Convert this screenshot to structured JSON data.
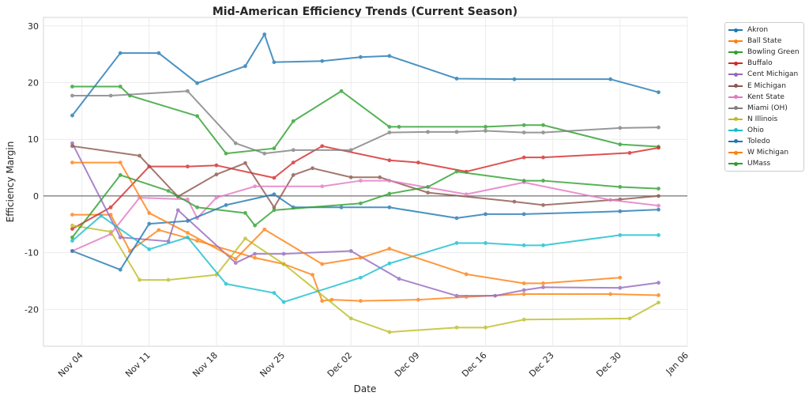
{
  "chart_data": {
    "type": "line",
    "title": "Mid-American Efficiency Trends (Current Season)",
    "xlabel": "Date",
    "ylabel": "Efficiency Margin",
    "ylim": [
      -26.5,
      31.5
    ],
    "xlim": [
      "11-00",
      "01-06"
    ],
    "yticks": [
      -20,
      -10,
      0,
      10,
      20,
      30
    ],
    "xticks": [
      {
        "date": "11-04",
        "label": "Nov 04"
      },
      {
        "date": "11-11",
        "label": "Nov 11"
      },
      {
        "date": "11-18",
        "label": "Nov 18"
      },
      {
        "date": "11-25",
        "label": "Nov 25"
      },
      {
        "date": "12-02",
        "label": "Dec 02"
      },
      {
        "date": "12-09",
        "label": "Dec 09"
      },
      {
        "date": "12-16",
        "label": "Dec 16"
      },
      {
        "date": "12-23",
        "label": "Dec 23"
      },
      {
        "date": "12-30",
        "label": "Dec 30"
      },
      {
        "date": "01-06",
        "label": "Jan 06"
      }
    ],
    "grid": true,
    "reference_line": 0,
    "legend_position": "outside-top-right",
    "series": [
      {
        "name": "Akron",
        "color": "#1f77b4",
        "points": [
          [
            "11-03",
            14.2
          ],
          [
            "11-08",
            25.2
          ],
          [
            "11-12",
            25.2
          ],
          [
            "11-16",
            19.9
          ],
          [
            "11-21",
            22.9
          ],
          [
            "11-23",
            28.5
          ],
          [
            "11-24",
            23.6
          ],
          [
            "11-29",
            23.8
          ],
          [
            "12-03",
            24.5
          ],
          [
            "12-06",
            24.7
          ],
          [
            "12-13",
            20.7
          ],
          [
            "12-19",
            20.6
          ],
          [
            "12-29",
            20.6
          ],
          [
            "01-03",
            18.3
          ]
        ]
      },
      {
        "name": "Ball State",
        "color": "#ff7f0e",
        "points": [
          [
            "11-03",
            -3.3
          ],
          [
            "11-07",
            -3.3
          ],
          [
            "11-09",
            -9.7
          ],
          [
            "11-12",
            -6.0
          ],
          [
            "11-16",
            -7.9
          ],
          [
            "11-22",
            -10.9
          ],
          [
            "11-25",
            -12.0
          ],
          [
            "11-28",
            -13.9
          ],
          [
            "11-29",
            -18.5
          ],
          [
            "11-30",
            -18.3
          ],
          [
            "12-03",
            -18.5
          ],
          [
            "12-09",
            -18.3
          ],
          [
            "12-14",
            -17.8
          ],
          [
            "12-20",
            -17.3
          ],
          [
            "12-29",
            -17.3
          ],
          [
            "01-03",
            -17.5
          ]
        ]
      },
      {
        "name": "Bowling Green",
        "color": "#2ca02c",
        "points": [
          [
            "11-03",
            19.3
          ],
          [
            "11-08",
            19.3
          ],
          [
            "11-09",
            17.7
          ],
          [
            "11-16",
            14.1
          ],
          [
            "11-19",
            7.5
          ],
          [
            "11-24",
            8.4
          ],
          [
            "11-26",
            13.2
          ],
          [
            "12-01",
            18.5
          ],
          [
            "12-06",
            12.2
          ],
          [
            "12-07",
            12.2
          ],
          [
            "12-16",
            12.2
          ],
          [
            "12-20",
            12.5
          ],
          [
            "12-22",
            12.5
          ],
          [
            "12-30",
            9.1
          ],
          [
            "01-03",
            8.7
          ]
        ]
      },
      {
        "name": "Buffalo",
        "color": "#d62728",
        "points": [
          [
            "11-03",
            -5.8
          ],
          [
            "11-07",
            -2.0
          ],
          [
            "11-11",
            5.2
          ],
          [
            "11-15",
            5.2
          ],
          [
            "11-18",
            5.4
          ],
          [
            "11-24",
            3.2
          ],
          [
            "11-26",
            5.9
          ],
          [
            "11-29",
            8.8
          ],
          [
            "12-06",
            6.3
          ],
          [
            "12-09",
            5.9
          ],
          [
            "12-14",
            4.3
          ],
          [
            "12-20",
            6.8
          ],
          [
            "12-22",
            6.8
          ],
          [
            "12-31",
            7.6
          ],
          [
            "01-03",
            8.5
          ]
        ]
      },
      {
        "name": "Cent Michigan",
        "color": "#9467bd",
        "points": [
          [
            "11-03",
            9.3
          ],
          [
            "11-08",
            -7.3
          ],
          [
            "11-13",
            -8.0
          ],
          [
            "11-14",
            -2.5
          ],
          [
            "11-20",
            -11.8
          ],
          [
            "11-22",
            -10.2
          ],
          [
            "11-25",
            -10.2
          ],
          [
            "12-02",
            -9.7
          ],
          [
            "12-07",
            -14.6
          ],
          [
            "12-13",
            -17.6
          ],
          [
            "12-17",
            -17.6
          ],
          [
            "12-20",
            -16.6
          ],
          [
            "12-22",
            -16.1
          ],
          [
            "12-30",
            -16.2
          ],
          [
            "01-03",
            -15.3
          ]
        ]
      },
      {
        "name": "E Michigan",
        "color": "#8c564b",
        "points": [
          [
            "11-03",
            8.8
          ],
          [
            "11-10",
            7.1
          ],
          [
            "11-14",
            -0.1
          ],
          [
            "11-18",
            3.8
          ],
          [
            "11-21",
            5.8
          ],
          [
            "11-24",
            -2.0
          ],
          [
            "11-26",
            3.7
          ],
          [
            "11-28",
            4.9
          ],
          [
            "12-02",
            3.3
          ],
          [
            "12-05",
            3.3
          ],
          [
            "12-10",
            0.6
          ],
          [
            "12-19",
            -1.0
          ],
          [
            "12-22",
            -1.6
          ],
          [
            "12-30",
            -0.6
          ],
          [
            "01-03",
            0.0
          ]
        ]
      },
      {
        "name": "Kent State",
        "color": "#e377c2",
        "points": [
          [
            "11-03",
            -9.7
          ],
          [
            "11-07",
            -6.7
          ],
          [
            "11-10",
            -0.3
          ],
          [
            "11-15",
            -0.6
          ],
          [
            "11-16",
            -3.9
          ],
          [
            "11-18",
            -0.3
          ],
          [
            "11-22",
            1.7
          ],
          [
            "11-29",
            1.7
          ],
          [
            "12-03",
            2.7
          ],
          [
            "12-06",
            2.7
          ],
          [
            "12-14",
            0.3
          ],
          [
            "12-20",
            2.4
          ],
          [
            "12-29",
            -0.7
          ],
          [
            "01-03",
            -1.7
          ]
        ]
      },
      {
        "name": "Miami (OH)",
        "color": "#7f7f7f",
        "points": [
          [
            "11-03",
            17.7
          ],
          [
            "11-07",
            17.7
          ],
          [
            "11-15",
            18.5
          ],
          [
            "11-20",
            9.3
          ],
          [
            "11-23",
            7.5
          ],
          [
            "11-26",
            8.1
          ],
          [
            "12-02",
            8.1
          ],
          [
            "12-06",
            11.2
          ],
          [
            "12-10",
            11.3
          ],
          [
            "12-13",
            11.3
          ],
          [
            "12-16",
            11.5
          ],
          [
            "12-20",
            11.2
          ],
          [
            "12-22",
            11.2
          ],
          [
            "12-30",
            12.0
          ],
          [
            "01-03",
            12.1
          ]
        ]
      },
      {
        "name": "N Illinois",
        "color": "#bcbd22",
        "points": [
          [
            "11-03",
            -5.2
          ],
          [
            "11-07",
            -6.3
          ],
          [
            "11-10",
            -14.8
          ],
          [
            "11-13",
            -14.8
          ],
          [
            "11-18",
            -13.9
          ],
          [
            "11-21",
            -7.5
          ],
          [
            "11-25",
            -12.0
          ],
          [
            "12-02",
            -21.6
          ],
          [
            "12-06",
            -24.0
          ],
          [
            "12-13",
            -23.2
          ],
          [
            "12-16",
            -23.2
          ],
          [
            "12-20",
            -21.8
          ],
          [
            "12-31",
            -21.6
          ],
          [
            "01-03",
            -18.8
          ]
        ]
      },
      {
        "name": "Ohio",
        "color": "#17becf",
        "points": [
          [
            "11-03",
            -7.9
          ],
          [
            "11-06",
            -3.5
          ],
          [
            "11-11",
            -9.4
          ],
          [
            "11-15",
            -7.3
          ],
          [
            "11-19",
            -15.5
          ],
          [
            "11-24",
            -17.1
          ],
          [
            "11-25",
            -18.7
          ],
          [
            "12-03",
            -14.4
          ],
          [
            "12-06",
            -11.9
          ],
          [
            "12-13",
            -8.3
          ],
          [
            "12-16",
            -8.3
          ],
          [
            "12-20",
            -8.7
          ],
          [
            "12-22",
            -8.7
          ],
          [
            "12-30",
            -6.9
          ],
          [
            "01-03",
            -6.9
          ]
        ]
      },
      {
        "name": "Toledo",
        "color": "#1f77b4",
        "points": [
          [
            "11-03",
            -9.7
          ],
          [
            "11-08",
            -13.0
          ],
          [
            "11-11",
            -4.9
          ],
          [
            "11-15",
            -4.4
          ],
          [
            "11-19",
            -1.6
          ],
          [
            "11-24",
            0.3
          ],
          [
            "11-26",
            -2.0
          ],
          [
            "12-01",
            -2.0
          ],
          [
            "12-06",
            -2.0
          ],
          [
            "12-13",
            -3.9
          ],
          [
            "12-16",
            -3.2
          ],
          [
            "12-20",
            -3.2
          ],
          [
            "12-30",
            -2.7
          ],
          [
            "01-03",
            -2.4
          ]
        ]
      },
      {
        "name": "W Michigan",
        "color": "#ff7f0e",
        "points": [
          [
            "11-03",
            5.9
          ],
          [
            "11-08",
            5.9
          ],
          [
            "11-11",
            -3.0
          ],
          [
            "11-15",
            -6.5
          ],
          [
            "11-20",
            -11.1
          ],
          [
            "11-23",
            -5.9
          ],
          [
            "11-29",
            -12.0
          ],
          [
            "12-03",
            -10.9
          ],
          [
            "12-06",
            -9.3
          ],
          [
            "12-14",
            -13.8
          ],
          [
            "12-20",
            -15.4
          ],
          [
            "12-22",
            -15.4
          ],
          [
            "12-30",
            -14.4
          ]
        ]
      },
      {
        "name": "UMass",
        "color": "#2ca02c",
        "points": [
          [
            "11-03",
            -7.3
          ],
          [
            "11-08",
            3.7
          ],
          [
            "11-13",
            0.9
          ],
          [
            "11-16",
            -2.0
          ],
          [
            "11-21",
            -3.0
          ],
          [
            "11-22",
            -5.2
          ],
          [
            "11-24",
            -2.5
          ],
          [
            "12-03",
            -1.3
          ],
          [
            "12-06",
            0.4
          ],
          [
            "12-10",
            1.6
          ],
          [
            "12-13",
            4.3
          ],
          [
            "12-20",
            2.7
          ],
          [
            "12-22",
            2.7
          ],
          [
            "12-30",
            1.6
          ],
          [
            "01-03",
            1.3
          ]
        ]
      }
    ]
  }
}
